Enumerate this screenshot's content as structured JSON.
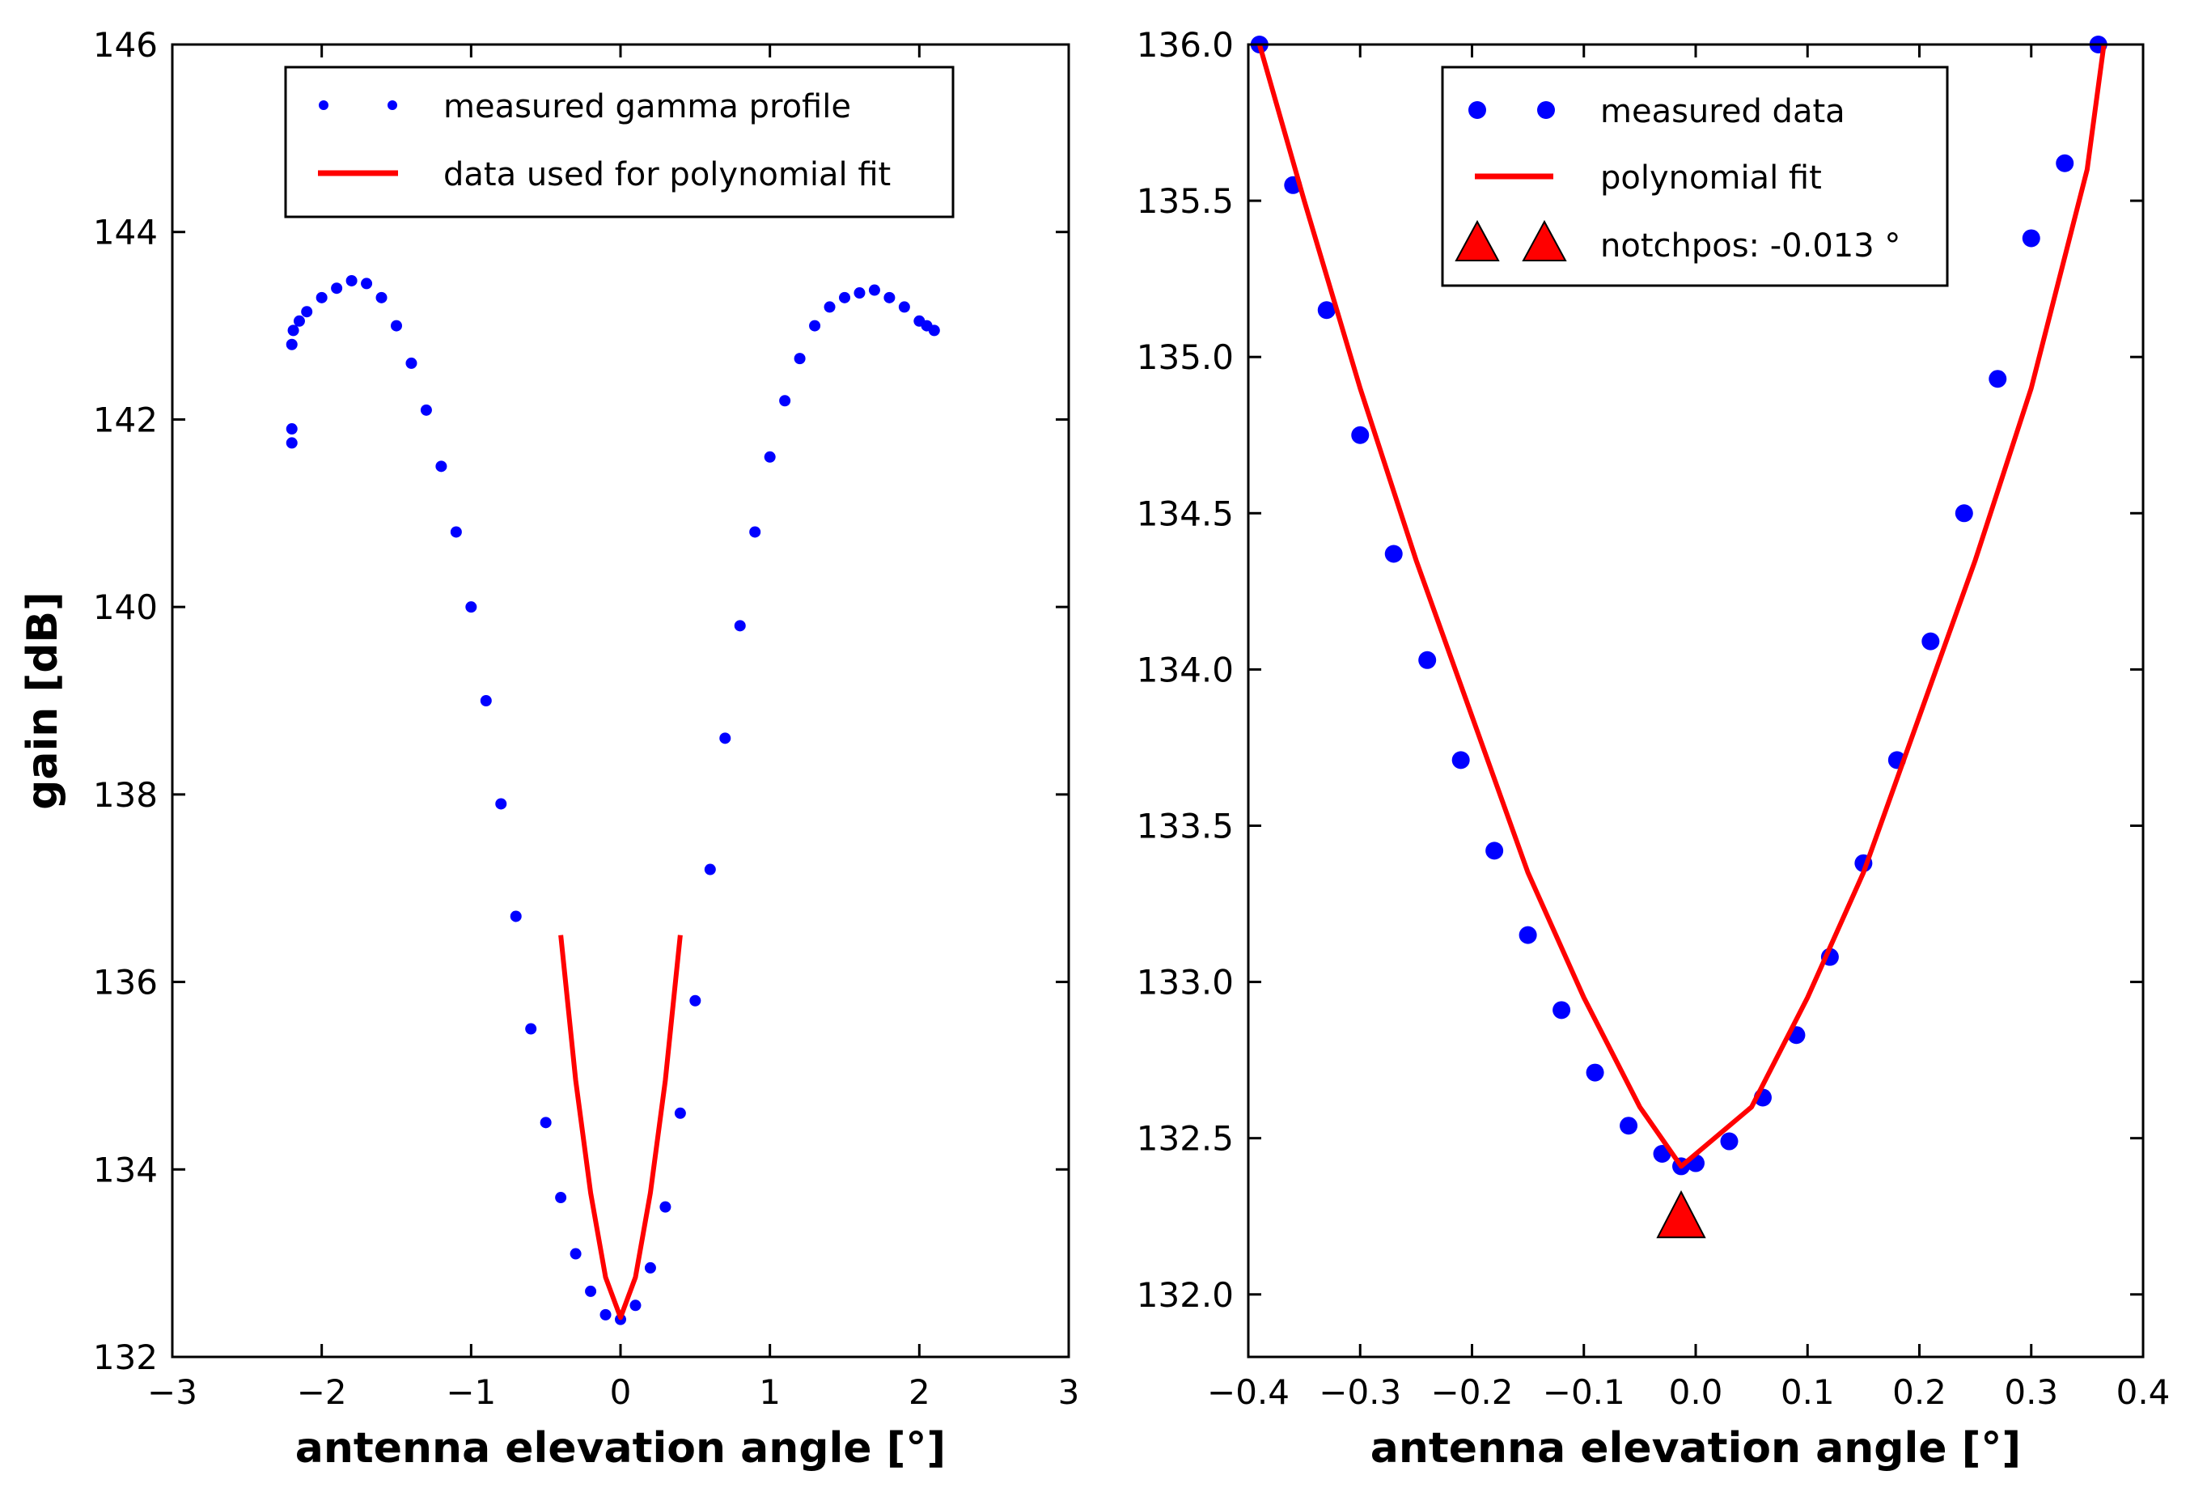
{
  "chart_data": [
    {
      "type": "scatter",
      "xlabel": "antenna elevation angle [°]",
      "ylabel": "gain [dB]",
      "xlim": [
        -3,
        3
      ],
      "ylim": [
        132,
        146
      ],
      "xticks": [
        -3,
        -2,
        -1,
        0,
        1,
        2,
        3
      ],
      "xtick_labels": [
        "−3",
        "−2",
        "−1",
        "0",
        "1",
        "2",
        "3"
      ],
      "yticks": [
        132,
        134,
        136,
        138,
        140,
        142,
        144,
        146
      ],
      "ytick_labels": [
        "132",
        "134",
        "136",
        "138",
        "140",
        "142",
        "144",
        "146"
      ],
      "legend_position": "top-center",
      "series": [
        {
          "name": "measured gamma profile",
          "kind": "markers",
          "color": "#0000ff",
          "x": [
            -2.2,
            -2.2,
            -2.2,
            -2.19,
            -2.15,
            -2.1,
            -2.0,
            -1.9,
            -1.8,
            -1.7,
            -1.6,
            -1.5,
            -1.4,
            -1.3,
            -1.2,
            -1.1,
            -1.0,
            -0.9,
            -0.8,
            -0.7,
            -0.6,
            -0.5,
            -0.4,
            -0.3,
            -0.2,
            -0.1,
            0.0,
            0.1,
            0.2,
            0.3,
            0.4,
            0.5,
            0.6,
            0.7,
            0.8,
            0.9,
            1.0,
            1.1,
            1.2,
            1.3,
            1.4,
            1.5,
            1.6,
            1.7,
            1.8,
            1.9,
            2.0,
            2.05,
            2.1
          ],
          "y": [
            141.75,
            141.9,
            142.8,
            142.95,
            143.05,
            143.15,
            143.3,
            143.4,
            143.48,
            143.45,
            143.3,
            143.0,
            142.6,
            142.1,
            141.5,
            140.8,
            140.0,
            139.0,
            137.9,
            136.7,
            135.5,
            134.5,
            133.7,
            133.1,
            132.7,
            132.45,
            132.4,
            132.55,
            132.95,
            133.6,
            134.6,
            135.8,
            137.2,
            138.6,
            139.8,
            140.8,
            141.6,
            142.2,
            142.65,
            143.0,
            143.2,
            143.3,
            143.35,
            143.38,
            143.3,
            143.2,
            143.05,
            143.0,
            142.95
          ]
        },
        {
          "name": "data used for polynomial fit",
          "kind": "line",
          "color": "#ff0000",
          "x": [
            -0.4,
            -0.3,
            -0.2,
            -0.1,
            0.0,
            0.1,
            0.2,
            0.3,
            0.4
          ],
          "y": [
            136.5,
            134.95,
            133.75,
            132.85,
            132.42,
            132.85,
            133.75,
            134.95,
            136.5
          ]
        }
      ]
    },
    {
      "type": "scatter",
      "xlabel": "antenna elevation angle [°]",
      "ylabel": "",
      "xlim": [
        -0.4,
        0.4
      ],
      "ylim": [
        131.8,
        136.0
      ],
      "xticks": [
        -0.4,
        -0.3,
        -0.2,
        -0.1,
        0.0,
        0.1,
        0.2,
        0.3,
        0.4
      ],
      "xtick_labels": [
        "−0.4",
        "−0.3",
        "−0.2",
        "−0.1",
        "0.0",
        "0.1",
        "0.2",
        "0.3",
        "0.4"
      ],
      "yticks": [
        132.0,
        132.5,
        133.0,
        133.5,
        134.0,
        134.5,
        135.0,
        135.5,
        136.0
      ],
      "ytick_labels": [
        "132.0",
        "132.5",
        "133.0",
        "133.5",
        "134.0",
        "134.5",
        "135.0",
        "135.5",
        "136.0"
      ],
      "legend_position": "top-center",
      "series": [
        {
          "name": "measured data",
          "kind": "markers",
          "color": "#0000ff",
          "x": [
            -0.39,
            -0.36,
            -0.33,
            -0.3,
            -0.27,
            -0.24,
            -0.21,
            -0.18,
            -0.15,
            -0.12,
            -0.09,
            -0.06,
            -0.03,
            -0.013,
            0.0,
            0.03,
            0.06,
            0.09,
            0.12,
            0.15,
            0.18,
            0.21,
            0.24,
            0.27,
            0.3,
            0.33,
            0.36
          ],
          "y": [
            136.0,
            135.55,
            135.15,
            134.75,
            134.37,
            134.03,
            133.71,
            133.42,
            133.15,
            132.91,
            132.71,
            132.54,
            132.45,
            132.41,
            132.42,
            132.49,
            132.63,
            132.83,
            133.08,
            133.38,
            133.71,
            134.09,
            134.5,
            134.93,
            135.38,
            135.62,
            136.0
          ]
        },
        {
          "name": "polynomial fit",
          "kind": "line",
          "color": "#ff0000",
          "x": [
            -0.39,
            -0.35,
            -0.3,
            -0.25,
            -0.2,
            -0.15,
            -0.1,
            -0.05,
            -0.013,
            0.05,
            0.1,
            0.15,
            0.2,
            0.25,
            0.3,
            0.35,
            0.365
          ],
          "y": [
            136.0,
            135.5,
            134.9,
            134.35,
            133.85,
            133.35,
            132.95,
            132.6,
            132.41,
            132.6,
            132.95,
            133.35,
            133.85,
            134.35,
            134.9,
            135.6,
            136.0
          ]
        },
        {
          "name": "notchpos: -0.013 °",
          "kind": "triangle",
          "color": "#ff0000",
          "x": [
            -0.013
          ],
          "y": [
            132.25
          ]
        }
      ]
    }
  ]
}
